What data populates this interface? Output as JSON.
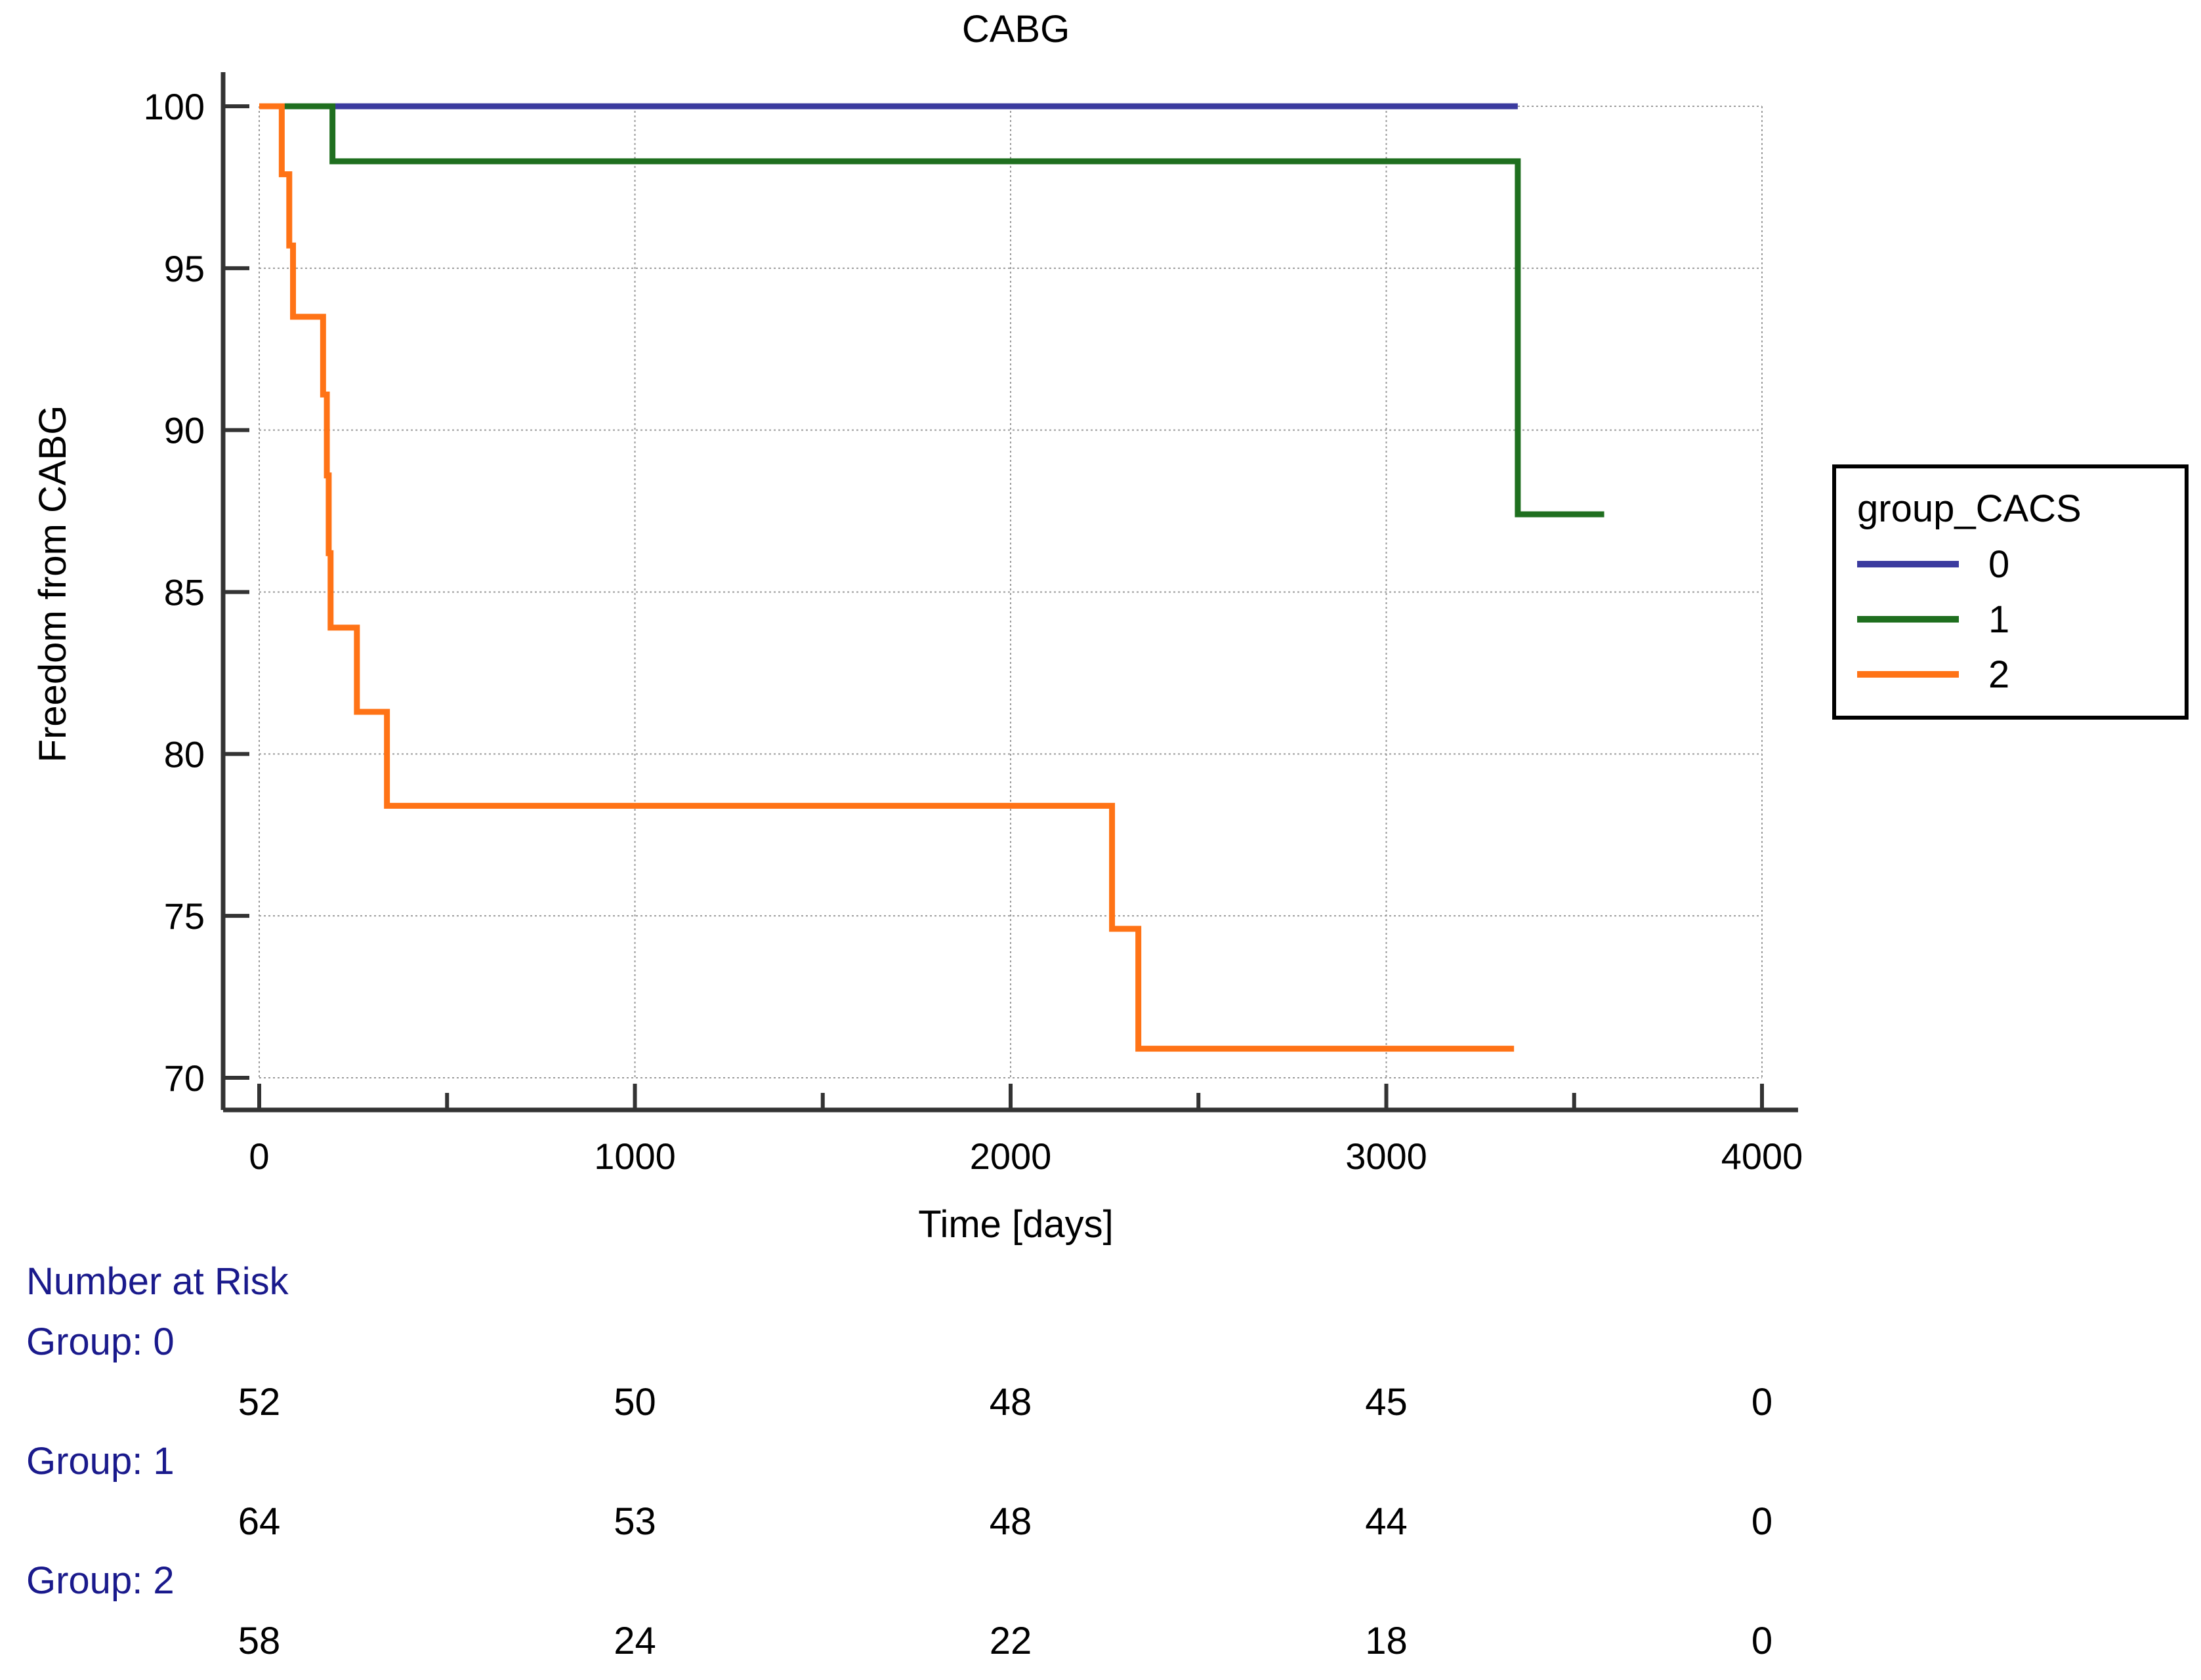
{
  "chart_data": {
    "type": "line",
    "title": "CABG",
    "xlabel": "Time [days]",
    "ylabel": "Freedom from CABG",
    "xlim": [
      0,
      4000
    ],
    "ylim": [
      70,
      100
    ],
    "x_ticks": [
      0,
      1000,
      2000,
      3000,
      4000
    ],
    "y_ticks": [
      70,
      75,
      80,
      85,
      90,
      95,
      100
    ],
    "grid": true,
    "legend": {
      "title": "group_CACS",
      "position": "right"
    },
    "series": [
      {
        "name": "0",
        "color": "#3b3b9f",
        "x": [
          0,
          3350
        ],
        "y": [
          100,
          100
        ]
      },
      {
        "name": "1",
        "color": "#1f6f1f",
        "x": [
          0,
          195,
          3350,
          3580
        ],
        "y": [
          100,
          98.3,
          87.4,
          87.4
        ]
      },
      {
        "name": "2",
        "color": "#ff7316",
        "x": [
          0,
          60,
          80,
          90,
          170,
          180,
          185,
          190,
          200,
          260,
          340,
          2270,
          2340,
          3340
        ],
        "y": [
          100,
          97.9,
          95.7,
          93.5,
          91.1,
          88.6,
          86.2,
          83.9,
          83.9,
          81.3,
          78.4,
          74.6,
          70.9,
          70.9
        ]
      }
    ]
  },
  "number_at_risk": {
    "heading": "Number at Risk",
    "times": [
      0,
      1000,
      2000,
      3000,
      4000
    ],
    "groups": [
      {
        "label": "Group: 0",
        "counts": [
          "52",
          "50",
          "48",
          "45",
          "0"
        ]
      },
      {
        "label": "Group: 1",
        "counts": [
          "64",
          "53",
          "48",
          "44",
          "0"
        ]
      },
      {
        "label": "Group: 2",
        "counts": [
          "58",
          "24",
          "22",
          "18",
          "0"
        ]
      }
    ]
  }
}
